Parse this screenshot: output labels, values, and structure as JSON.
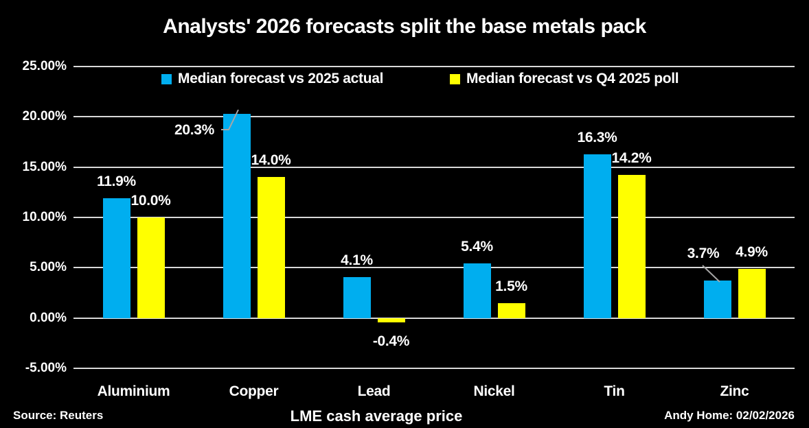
{
  "chart_data": {
    "type": "bar",
    "title": "Analysts' 2026 forecasts split the base metals pack",
    "categories": [
      "Aluminium",
      "Copper",
      "Lead",
      "Nickel",
      "Tin",
      "Zinc"
    ],
    "series": [
      {
        "name": "Median forecast vs 2025 actual",
        "color": "#00AEEF",
        "values": [
          11.9,
          20.3,
          4.1,
          5.4,
          16.3,
          3.7
        ]
      },
      {
        "name": "Median forecast vs Q4 2025 poll",
        "color": "#FFFF00",
        "values": [
          10.0,
          14.0,
          -0.4,
          1.5,
          14.2,
          4.9
        ]
      }
    ],
    "ylim": [
      -5,
      25
    ],
    "ytick_step": 5,
    "ytick_labels": [
      "25.00%",
      "20.00%",
      "15.00%",
      "10.00%",
      "5.00%",
      "0.00%",
      "-5.00%"
    ],
    "xlabel": "LME cash average price",
    "ylabel": "",
    "grid": true,
    "legend_position": "top-inside",
    "data_label_format": "one-decimal-percent",
    "colors": {
      "background": "#000000",
      "grid": "#D9D9D9",
      "text": "#FFFFFF",
      "leader": "#A6A6A6"
    }
  },
  "footer": {
    "source": "Source: Reuters",
    "credit": "Andy Home: 02/02/2026"
  }
}
